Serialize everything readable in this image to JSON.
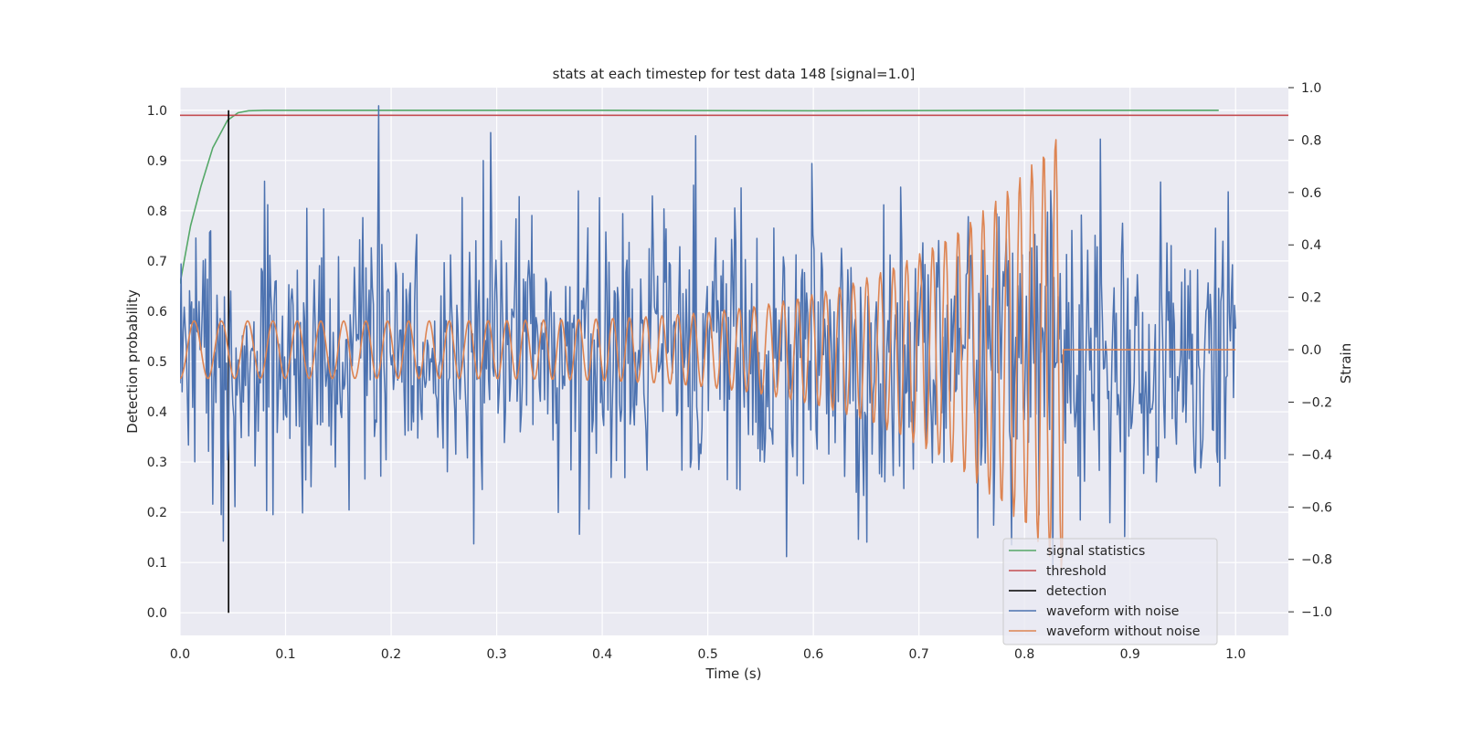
{
  "chart_data": {
    "type": "line",
    "title": "stats at each timestep for test data 148 [signal=1.0]",
    "xlabel": "Time (s)",
    "ylabel": "Detection probability",
    "y2label": "Strain",
    "xlim": [
      0.0,
      1.05
    ],
    "ylim": [
      -0.045,
      1.045
    ],
    "y2lim": [
      -1.09,
      1.0
    ],
    "x_ticks": [
      "0.0",
      "0.1",
      "0.2",
      "0.3",
      "0.4",
      "0.5",
      "0.6",
      "0.7",
      "0.8",
      "0.9",
      "1.0"
    ],
    "y_ticks": [
      "0.0",
      "0.1",
      "0.2",
      "0.3",
      "0.4",
      "0.5",
      "0.6",
      "0.7",
      "0.8",
      "0.9",
      "1.0"
    ],
    "y2_ticks": [
      "−1.0",
      "−0.8",
      "−0.6",
      "−0.4",
      "−0.2",
      "0.0",
      "0.2",
      "0.4",
      "0.6",
      "0.8",
      "1.0"
    ],
    "grid": true,
    "legend_position": "lower right",
    "colors": {
      "signal_statistics": "#55a868",
      "threshold": "#c44e52",
      "detection": "#000000",
      "waveform_with_noise": "#4c72b0",
      "waveform_without_noise": "#dd8452",
      "plot_background": "#eaeaf2",
      "grid": "#ffffff"
    },
    "series": [
      {
        "name": "signal statistics",
        "axis": "left",
        "x": [
          0.0,
          0.01,
          0.02,
          0.031,
          0.045,
          0.055,
          0.065,
          0.08,
          0.1,
          0.2,
          0.4,
          0.6,
          0.8,
          0.984
        ],
        "y": [
          0.655,
          0.77,
          0.85,
          0.925,
          0.98,
          0.995,
          0.999,
          1.0,
          1.0,
          1.0,
          1.0,
          0.999,
          1.0,
          1.0
        ]
      },
      {
        "name": "threshold",
        "axis": "left",
        "x": [
          0.0,
          1.05
        ],
        "y": [
          0.99,
          0.99
        ]
      },
      {
        "name": "detection",
        "axis": "left",
        "x": [
          0.046,
          0.046
        ],
        "y": [
          0.0,
          1.0
        ]
      },
      {
        "name": "waveform with noise",
        "axis": "right",
        "generated": "noisy",
        "x_range": [
          0.0,
          1.0
        ],
        "n_points": 1000,
        "seed": 148,
        "y_range": [
          -1.0,
          1.0
        ]
      },
      {
        "name": "waveform without noise",
        "axis": "right",
        "generated": "chirp",
        "x_range": [
          0.0,
          1.0
        ],
        "n_points": 1000,
        "chirp_end": 0.836,
        "amp_start": 0.11,
        "amp_end": 0.85
      }
    ]
  }
}
